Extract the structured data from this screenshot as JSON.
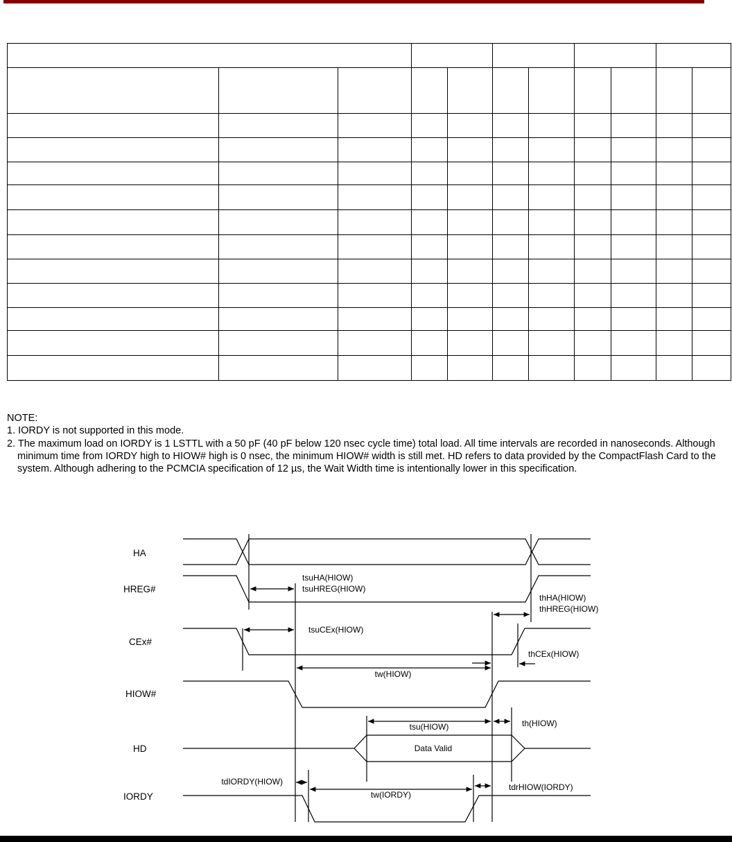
{
  "header": {
    "bar_color": "#850000"
  },
  "table": {
    "rows": 13,
    "note": "empty grid"
  },
  "notes": {
    "heading": "NOTE:",
    "items": [
      "1. IORDY is not supported in this mode.",
      "2. The maximum load on IORDY is 1 LSTTL with a 50 pF (40 pF below 120 nsec cycle time) total load. All time intervals are recorded in nanoseconds. Although minimum time from IORDY high to HIOW# high is 0 nsec, the minimum HIOW# width is still met. HD refers to data provided by the CompactFlash Card to the system. Although adhering to the PCMCIA specification of 12 µs, the Wait Width time is intentionally lower in this specification."
    ]
  },
  "diagram": {
    "signals": [
      "HA",
      "HREG#",
      "CEx#",
      "HIOW#",
      "HD",
      "IORDY"
    ],
    "labels": {
      "tsuHA": "tsuHA(HIOW)",
      "tsuHREG": "tsuHREG(HIOW)",
      "thHA": "thHA(HIOW)",
      "thHREG": "thHREG(HIOW)",
      "tsuCEx": "tsuCEx(HIOW)",
      "thCEx": "thCEx(HIOW)",
      "twHIOW": "tw(HIOW)",
      "tsuHIOW": "tsu(HIOW)",
      "thHIOW": "th(HIOW)",
      "dataValid": "Data Valid",
      "tdIORDY": "tdIORDY(HIOW)",
      "twIORDY": "tw(IORDY)",
      "tdrHIOW": "tdrHIOW(IORDY)"
    }
  }
}
